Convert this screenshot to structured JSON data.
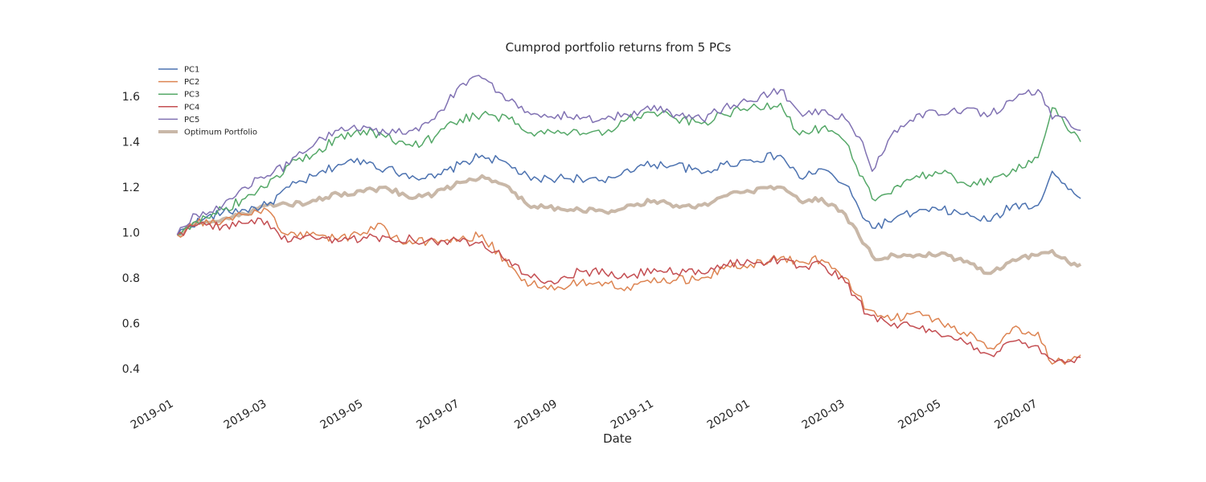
{
  "chart_data": {
    "type": "line",
    "title": "Cumprod portfolio returns from 5 PCs",
    "xlabel": "Date",
    "ylabel": "",
    "xlim": [
      "2018-12-18",
      "2020-07-31"
    ],
    "ylim": [
      0.3,
      1.77
    ],
    "y_ticks": [
      "0.4",
      "0.6",
      "0.8",
      "1.0",
      "1.2",
      "1.4",
      "1.6"
    ],
    "x_ticks": [
      "2019-01",
      "2019-03",
      "2019-05",
      "2019-07",
      "2019-09",
      "2019-11",
      "2020-01",
      "2020-03",
      "2020-05",
      "2020-07"
    ],
    "x_tick_dates": [
      "2019-01-01",
      "2019-03-01",
      "2019-05-01",
      "2019-07-01",
      "2019-09-01",
      "2019-11-01",
      "2020-01-01",
      "2020-03-01",
      "2020-05-01",
      "2020-07-01"
    ],
    "grid": false,
    "legend_position": "top-left",
    "series": [
      {
        "name": "PC1",
        "color": "#4c72b0",
        "points": [
          [
            "2019-01-03",
            0.99
          ],
          [
            "2019-01-10",
            1.03
          ],
          [
            "2019-01-20",
            1.06
          ],
          [
            "2019-02-01",
            1.09
          ],
          [
            "2019-02-15",
            1.1
          ],
          [
            "2019-03-01",
            1.12
          ],
          [
            "2019-03-15",
            1.2
          ],
          [
            "2019-04-01",
            1.25
          ],
          [
            "2019-04-15",
            1.3
          ],
          [
            "2019-05-01",
            1.32
          ],
          [
            "2019-05-15",
            1.28
          ],
          [
            "2019-06-01",
            1.25
          ],
          [
            "2019-06-15",
            1.24
          ],
          [
            "2019-07-01",
            1.3
          ],
          [
            "2019-07-15",
            1.34
          ],
          [
            "2019-08-01",
            1.3
          ],
          [
            "2019-08-15",
            1.23
          ],
          [
            "2019-09-01",
            1.24
          ],
          [
            "2019-09-15",
            1.24
          ],
          [
            "2019-10-01",
            1.22
          ],
          [
            "2019-10-15",
            1.28
          ],
          [
            "2019-11-01",
            1.3
          ],
          [
            "2019-11-15",
            1.3
          ],
          [
            "2019-12-01",
            1.26
          ],
          [
            "2019-12-15",
            1.3
          ],
          [
            "2020-01-01",
            1.32
          ],
          [
            "2020-01-20",
            1.34
          ],
          [
            "2020-02-01",
            1.24
          ],
          [
            "2020-02-15",
            1.28
          ],
          [
            "2020-03-01",
            1.21
          ],
          [
            "2020-03-10",
            1.1
          ],
          [
            "2020-03-18",
            1.02
          ],
          [
            "2020-04-01",
            1.06
          ],
          [
            "2020-04-15",
            1.09
          ],
          [
            "2020-05-01",
            1.1
          ],
          [
            "2020-05-15",
            1.08
          ],
          [
            "2020-06-01",
            1.05
          ],
          [
            "2020-06-15",
            1.12
          ],
          [
            "2020-07-01",
            1.12
          ],
          [
            "2020-07-10",
            1.27
          ],
          [
            "2020-07-20",
            1.19
          ],
          [
            "2020-07-28",
            1.15
          ]
        ]
      },
      {
        "name": "PC2",
        "color": "#dd8452",
        "points": [
          [
            "2019-01-03",
            0.99
          ],
          [
            "2019-01-15",
            1.04
          ],
          [
            "2019-02-01",
            1.05
          ],
          [
            "2019-02-15",
            1.08
          ],
          [
            "2019-03-01",
            1.1
          ],
          [
            "2019-03-10",
            1.0
          ],
          [
            "2019-04-01",
            0.99
          ],
          [
            "2019-04-15",
            0.97
          ],
          [
            "2019-05-01",
            1.0
          ],
          [
            "2019-05-10",
            1.04
          ],
          [
            "2019-05-20",
            0.98
          ],
          [
            "2019-06-01",
            0.95
          ],
          [
            "2019-06-15",
            0.97
          ],
          [
            "2019-07-01",
            0.97
          ],
          [
            "2019-07-15",
            0.99
          ],
          [
            "2019-08-01",
            0.85
          ],
          [
            "2019-08-15",
            0.77
          ],
          [
            "2019-09-01",
            0.76
          ],
          [
            "2019-09-15",
            0.78
          ],
          [
            "2019-10-01",
            0.78
          ],
          [
            "2019-10-15",
            0.76
          ],
          [
            "2019-11-01",
            0.8
          ],
          [
            "2019-11-15",
            0.79
          ],
          [
            "2019-12-01",
            0.8
          ],
          [
            "2019-12-15",
            0.84
          ],
          [
            "2020-01-01",
            0.86
          ],
          [
            "2020-01-20",
            0.89
          ],
          [
            "2020-02-01",
            0.87
          ],
          [
            "2020-02-15",
            0.88
          ],
          [
            "2020-03-01",
            0.8
          ],
          [
            "2020-03-15",
            0.66
          ],
          [
            "2020-04-01",
            0.62
          ],
          [
            "2020-04-15",
            0.65
          ],
          [
            "2020-05-01",
            0.6
          ],
          [
            "2020-05-15",
            0.56
          ],
          [
            "2020-06-01",
            0.49
          ],
          [
            "2020-06-15",
            0.58
          ],
          [
            "2020-07-01",
            0.56
          ],
          [
            "2020-07-10",
            0.42
          ],
          [
            "2020-07-20",
            0.44
          ],
          [
            "2020-07-28",
            0.46
          ]
        ]
      },
      {
        "name": "PC3",
        "color": "#55a868",
        "points": [
          [
            "2019-01-03",
            0.99
          ],
          [
            "2019-01-15",
            1.05
          ],
          [
            "2019-02-01",
            1.1
          ],
          [
            "2019-02-15",
            1.15
          ],
          [
            "2019-03-01",
            1.2
          ],
          [
            "2019-03-15",
            1.3
          ],
          [
            "2019-04-01",
            1.35
          ],
          [
            "2019-04-15",
            1.42
          ],
          [
            "2019-05-01",
            1.45
          ],
          [
            "2019-05-15",
            1.42
          ],
          [
            "2019-06-01",
            1.38
          ],
          [
            "2019-06-15",
            1.42
          ],
          [
            "2019-07-01",
            1.5
          ],
          [
            "2019-07-15",
            1.52
          ],
          [
            "2019-08-01",
            1.5
          ],
          [
            "2019-08-15",
            1.44
          ],
          [
            "2019-09-01",
            1.45
          ],
          [
            "2019-09-15",
            1.43
          ],
          [
            "2019-10-01",
            1.44
          ],
          [
            "2019-10-15",
            1.5
          ],
          [
            "2019-11-01",
            1.53
          ],
          [
            "2019-11-15",
            1.5
          ],
          [
            "2019-12-01",
            1.48
          ],
          [
            "2019-12-15",
            1.52
          ],
          [
            "2020-01-01",
            1.55
          ],
          [
            "2020-01-20",
            1.57
          ],
          [
            "2020-02-01",
            1.43
          ],
          [
            "2020-02-15",
            1.46
          ],
          [
            "2020-03-01",
            1.4
          ],
          [
            "2020-03-10",
            1.25
          ],
          [
            "2020-03-20",
            1.14
          ],
          [
            "2020-04-01",
            1.2
          ],
          [
            "2020-04-15",
            1.25
          ],
          [
            "2020-05-01",
            1.26
          ],
          [
            "2020-05-15",
            1.22
          ],
          [
            "2020-06-01",
            1.22
          ],
          [
            "2020-06-15",
            1.28
          ],
          [
            "2020-07-01",
            1.33
          ],
          [
            "2020-07-10",
            1.55
          ],
          [
            "2020-07-20",
            1.45
          ],
          [
            "2020-07-28",
            1.4
          ]
        ]
      },
      {
        "name": "PC4",
        "color": "#c44e52",
        "points": [
          [
            "2019-01-03",
            0.99
          ],
          [
            "2019-01-15",
            1.03
          ],
          [
            "2019-02-01",
            1.03
          ],
          [
            "2019-02-15",
            1.04
          ],
          [
            "2019-03-01",
            1.05
          ],
          [
            "2019-03-10",
            0.97
          ],
          [
            "2019-04-01",
            0.97
          ],
          [
            "2019-04-15",
            0.96
          ],
          [
            "2019-05-01",
            0.98
          ],
          [
            "2019-05-15",
            0.98
          ],
          [
            "2019-06-01",
            0.97
          ],
          [
            "2019-06-15",
            0.96
          ],
          [
            "2019-07-01",
            0.96
          ],
          [
            "2019-07-15",
            0.96
          ],
          [
            "2019-08-01",
            0.88
          ],
          [
            "2019-08-15",
            0.8
          ],
          [
            "2019-09-01",
            0.78
          ],
          [
            "2019-09-15",
            0.83
          ],
          [
            "2019-10-01",
            0.82
          ],
          [
            "2019-10-15",
            0.8
          ],
          [
            "2019-11-01",
            0.84
          ],
          [
            "2019-11-15",
            0.82
          ],
          [
            "2019-12-01",
            0.82
          ],
          [
            "2019-12-15",
            0.86
          ],
          [
            "2020-01-01",
            0.87
          ],
          [
            "2020-01-20",
            0.88
          ],
          [
            "2020-02-01",
            0.85
          ],
          [
            "2020-02-15",
            0.86
          ],
          [
            "2020-03-01",
            0.78
          ],
          [
            "2020-03-15",
            0.64
          ],
          [
            "2020-04-01",
            0.6
          ],
          [
            "2020-04-15",
            0.58
          ],
          [
            "2020-05-01",
            0.54
          ],
          [
            "2020-05-15",
            0.52
          ],
          [
            "2020-06-01",
            0.46
          ],
          [
            "2020-06-15",
            0.52
          ],
          [
            "2020-07-01",
            0.5
          ],
          [
            "2020-07-10",
            0.44
          ],
          [
            "2020-07-20",
            0.43
          ],
          [
            "2020-07-28",
            0.45
          ]
        ]
      },
      {
        "name": "PC5",
        "color": "#8172b3",
        "points": [
          [
            "2019-01-03",
            0.99
          ],
          [
            "2019-01-15",
            1.08
          ],
          [
            "2019-02-01",
            1.12
          ],
          [
            "2019-02-15",
            1.2
          ],
          [
            "2019-03-01",
            1.25
          ],
          [
            "2019-03-15",
            1.3
          ],
          [
            "2019-04-01",
            1.4
          ],
          [
            "2019-04-15",
            1.45
          ],
          [
            "2019-05-01",
            1.47
          ],
          [
            "2019-05-15",
            1.44
          ],
          [
            "2019-06-01",
            1.45
          ],
          [
            "2019-06-15",
            1.5
          ],
          [
            "2019-07-01",
            1.65
          ],
          [
            "2019-07-15",
            1.68
          ],
          [
            "2019-08-01",
            1.58
          ],
          [
            "2019-08-15",
            1.52
          ],
          [
            "2019-09-01",
            1.52
          ],
          [
            "2019-09-15",
            1.5
          ],
          [
            "2019-10-01",
            1.5
          ],
          [
            "2019-10-15",
            1.52
          ],
          [
            "2019-11-01",
            1.56
          ],
          [
            "2019-11-15",
            1.52
          ],
          [
            "2019-12-01",
            1.5
          ],
          [
            "2019-12-15",
            1.55
          ],
          [
            "2020-01-01",
            1.58
          ],
          [
            "2020-01-20",
            1.63
          ],
          [
            "2020-02-01",
            1.53
          ],
          [
            "2020-02-15",
            1.54
          ],
          [
            "2020-03-01",
            1.5
          ],
          [
            "2020-03-10",
            1.42
          ],
          [
            "2020-03-18",
            1.27
          ],
          [
            "2020-04-01",
            1.45
          ],
          [
            "2020-04-15",
            1.52
          ],
          [
            "2020-05-01",
            1.52
          ],
          [
            "2020-05-15",
            1.54
          ],
          [
            "2020-06-01",
            1.52
          ],
          [
            "2020-06-15",
            1.58
          ],
          [
            "2020-07-01",
            1.63
          ],
          [
            "2020-07-10",
            1.5
          ],
          [
            "2020-07-20",
            1.49
          ],
          [
            "2020-07-28",
            1.45
          ]
        ]
      },
      {
        "name": "Optimum Portfolio",
        "color": "#c9b8a8",
        "points": [
          [
            "2019-01-03",
            0.99
          ],
          [
            "2019-01-15",
            1.04
          ],
          [
            "2019-02-01",
            1.06
          ],
          [
            "2019-02-15",
            1.08
          ],
          [
            "2019-03-01",
            1.12
          ],
          [
            "2019-03-15",
            1.12
          ],
          [
            "2019-04-01",
            1.14
          ],
          [
            "2019-04-15",
            1.17
          ],
          [
            "2019-05-01",
            1.18
          ],
          [
            "2019-05-15",
            1.2
          ],
          [
            "2019-06-01",
            1.15
          ],
          [
            "2019-06-15",
            1.17
          ],
          [
            "2019-07-01",
            1.22
          ],
          [
            "2019-07-15",
            1.25
          ],
          [
            "2019-08-01",
            1.2
          ],
          [
            "2019-08-15",
            1.11
          ],
          [
            "2019-09-01",
            1.11
          ],
          [
            "2019-09-15",
            1.1
          ],
          [
            "2019-10-01",
            1.09
          ],
          [
            "2019-10-15",
            1.12
          ],
          [
            "2019-11-01",
            1.14
          ],
          [
            "2019-11-15",
            1.12
          ],
          [
            "2019-12-01",
            1.12
          ],
          [
            "2019-12-15",
            1.16
          ],
          [
            "2020-01-01",
            1.18
          ],
          [
            "2020-01-20",
            1.2
          ],
          [
            "2020-02-01",
            1.14
          ],
          [
            "2020-02-15",
            1.15
          ],
          [
            "2020-03-01",
            1.08
          ],
          [
            "2020-03-10",
            0.98
          ],
          [
            "2020-03-20",
            0.88
          ],
          [
            "2020-04-01",
            0.9
          ],
          [
            "2020-04-15",
            0.9
          ],
          [
            "2020-05-01",
            0.91
          ],
          [
            "2020-05-15",
            0.87
          ],
          [
            "2020-06-01",
            0.82
          ],
          [
            "2020-06-15",
            0.88
          ],
          [
            "2020-07-01",
            0.9
          ],
          [
            "2020-07-10",
            0.92
          ],
          [
            "2020-07-20",
            0.87
          ],
          [
            "2020-07-28",
            0.86
          ]
        ]
      }
    ]
  }
}
